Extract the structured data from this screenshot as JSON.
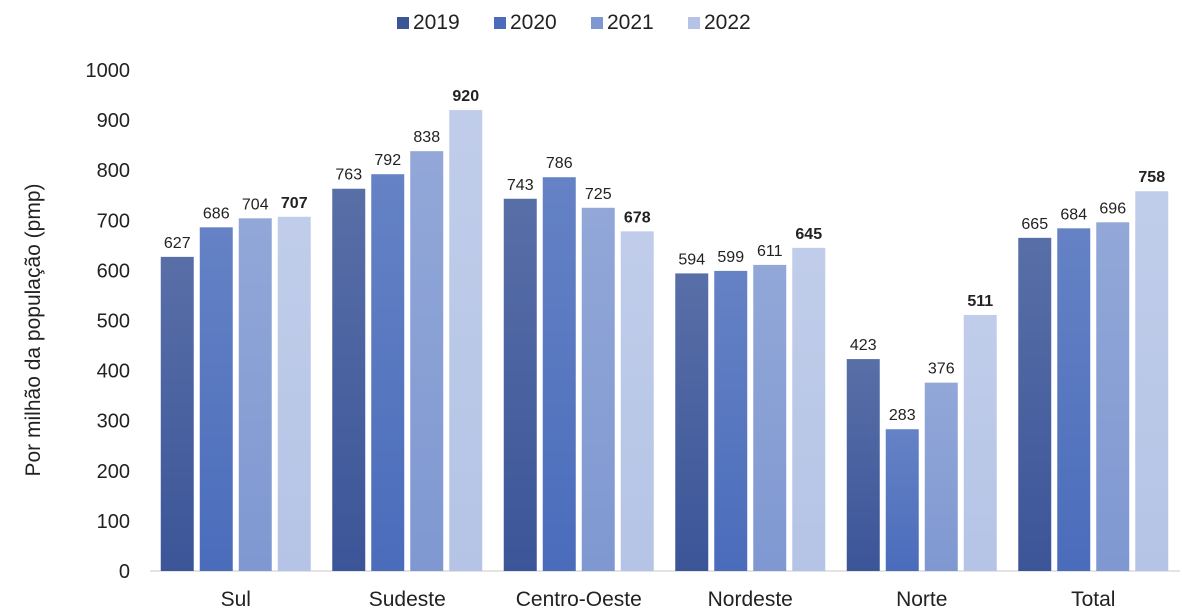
{
  "chart_data": {
    "type": "bar",
    "title": "",
    "xlabel": "",
    "ylabel": "Por milhão da população (pmp)",
    "categories": [
      "Sul",
      "Sudeste",
      "Centro-Oeste",
      "Nordeste",
      "Norte",
      "Total"
    ],
    "series": [
      {
        "name": "2019",
        "values": [
          627,
          763,
          743,
          594,
          423,
          665
        ],
        "color": "#3b5598"
      },
      {
        "name": "2020",
        "values": [
          686,
          792,
          786,
          599,
          283,
          684
        ],
        "color": "#4a6cbb"
      },
      {
        "name": "2021",
        "values": [
          704,
          838,
          725,
          611,
          376,
          696
        ],
        "color": "#7f98d1"
      },
      {
        "name": "2022",
        "values": [
          707,
          920,
          678,
          645,
          511,
          758
        ],
        "color": "#b5c4e6",
        "bold_labels": true
      }
    ],
    "ylim": [
      0,
      1000
    ],
    "yticks": [
      0,
      100,
      200,
      300,
      400,
      500,
      600,
      700,
      800,
      900,
      1000
    ],
    "grid": false,
    "legend_position": "top-center"
  }
}
